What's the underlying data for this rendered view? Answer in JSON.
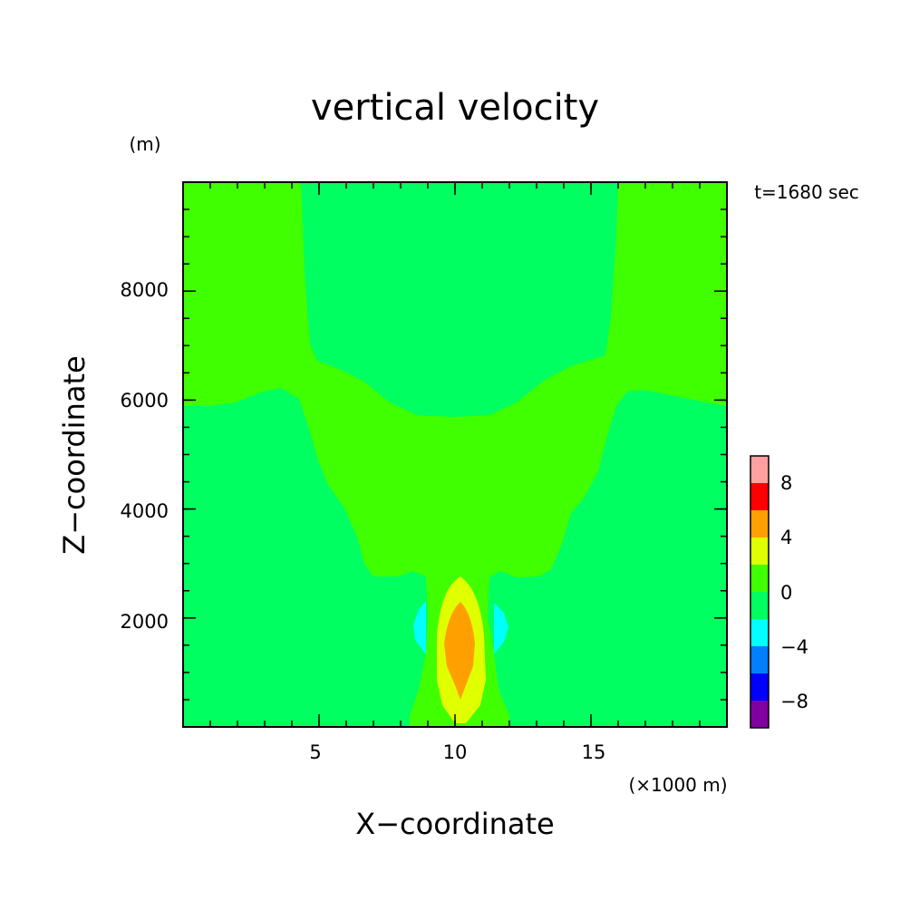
{
  "chart_data": {
    "type": "heatmap",
    "title": "vertical velocity",
    "xlabel": "X−coordinate",
    "ylabel": "Z−coordinate",
    "x_unit": "(×1000 m)",
    "y_unit": "(m)",
    "time_label": "t=1680 sec",
    "xlim": [
      0,
      20
    ],
    "ylim": [
      0,
      10000
    ],
    "x_ticks": [
      5,
      10,
      15
    ],
    "y_ticks": [
      2000,
      4000,
      6000,
      8000
    ],
    "x_tick_labels": [
      "5",
      "10",
      "15"
    ],
    "y_tick_labels": [
      "2000",
      "4000",
      "6000",
      "8000"
    ],
    "colorbar": {
      "levels": [
        -10,
        -8,
        -6,
        -4,
        -2,
        0,
        2,
        4,
        6,
        8,
        10
      ],
      "labels": [
        "−8",
        "−4",
        "0",
        "4",
        "8"
      ],
      "colors": [
        "#8000a0",
        "#0000ff",
        "#0080ff",
        "#00ffff",
        "#00ff60",
        "#40ff00",
        "#e0ff00",
        "#ffa000",
        "#ff0000",
        "#ffa0a0"
      ]
    },
    "regions": [
      {
        "range": [
          -2,
          0
        ],
        "color": "#00ff60",
        "description": "background field"
      },
      {
        "range": [
          0,
          2
        ],
        "color": "#40ff00",
        "description": "broad plume aloft"
      },
      {
        "range": [
          -4,
          -2
        ],
        "color": "#00ffff",
        "description": "flanking downdrafts near x=9 and x=11.5, z≈1300-2300"
      },
      {
        "range": [
          2,
          4
        ],
        "color": "#e0ff00",
        "description": "updraft core x≈9.3-11, z≈100-2700"
      },
      {
        "range": [
          4,
          6
        ],
        "color": "#ffa000",
        "description": "updraft maximum x≈9.8-10.8, z≈500-2300"
      }
    ]
  }
}
